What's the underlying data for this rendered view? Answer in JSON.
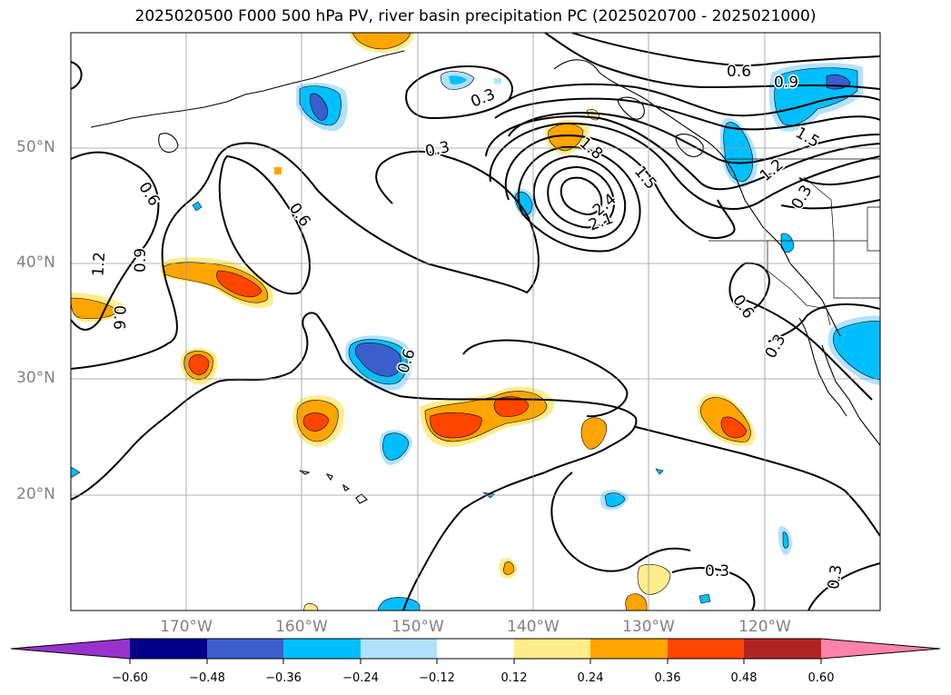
{
  "title": "2025020500 F000 500 hPa PV, river basin precipitation PC (2025020700 - 2025021000)",
  "lat_labels": [
    {
      "lat": 50,
      "label": "50°N"
    },
    {
      "lat": 40,
      "label": "40°N"
    },
    {
      "lat": 30,
      "label": "30°N"
    },
    {
      "lat": 20,
      "label": "20°N"
    }
  ],
  "lon_labels": [
    {
      "lon": -170,
      "label": "170°W"
    },
    {
      "lon": -160,
      "label": "160°W"
    },
    {
      "lon": -150,
      "label": "150°W"
    },
    {
      "lon": -140,
      "label": "140°W"
    },
    {
      "lon": -130,
      "label": "130°W"
    },
    {
      "lon": -120,
      "label": "120°W"
    }
  ],
  "extent": {
    "lon_min": -180,
    "lon_max": -110,
    "lat_min": 10,
    "lat_max": 60
  },
  "gridlines": true,
  "contour_labels": [
    "0.3",
    "0.6",
    "0.9",
    "1.2",
    "1.5",
    "1.8",
    "2.1",
    "2.4"
  ],
  "colorbar": {
    "ticks": [
      "−0.60",
      "−0.48",
      "−0.36",
      "−0.24",
      "−0.12",
      "0.12",
      "0.24",
      "0.36",
      "0.48",
      "0.60"
    ],
    "levels": [
      -0.6,
      -0.48,
      -0.36,
      -0.24,
      -0.12,
      0.12,
      0.24,
      0.36,
      0.48,
      0.6
    ],
    "colors": [
      "#9932cc",
      "#00008b",
      "#3a5fcd",
      "#00bfff",
      "#b0e2ff",
      "#ffffff",
      "#ffec8b",
      "#ffa500",
      "#ff4500",
      "#b22222",
      "#ff82ab"
    ]
  }
}
